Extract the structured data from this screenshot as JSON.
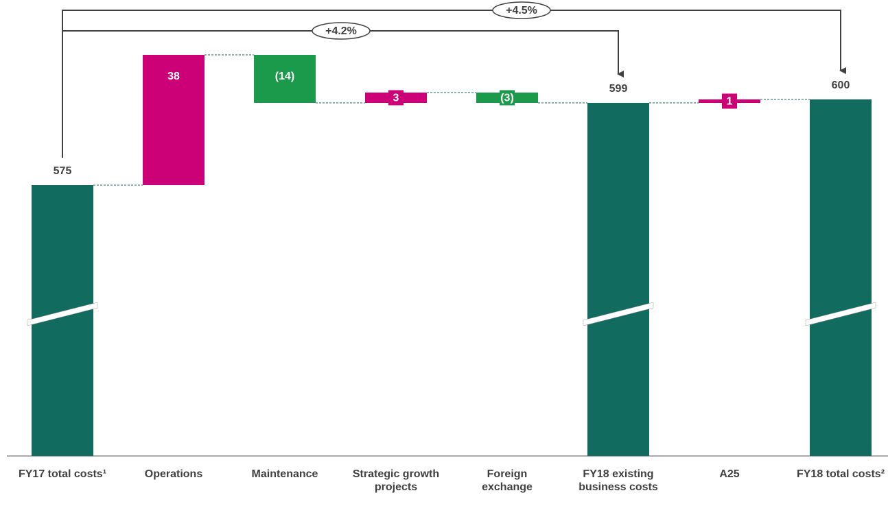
{
  "chart_data": {
    "type": "waterfall",
    "categories": [
      "FY17 total costs¹",
      "Operations",
      "Maintenance",
      "Strategic growth projects",
      "Foreign exchange",
      "FY18 existing business costs",
      "A25",
      "FY18 total costs²"
    ],
    "values": [
      575,
      38,
      -14,
      3,
      -3,
      599,
      1,
      600
    ],
    "value_labels": [
      "575",
      "38",
      "(14)",
      "3",
      "(3)",
      "599",
      "1",
      "600"
    ],
    "measure": [
      "total",
      "relative",
      "relative",
      "relative",
      "relative",
      "total",
      "relative",
      "total"
    ],
    "colors": {
      "total": "#126b5f",
      "increase": "#cc0077",
      "decrease": "#1a9a4a"
    },
    "ylim": [
      496,
      628
    ],
    "annotations": [
      "+4.2%",
      "+4.5%"
    ]
  }
}
